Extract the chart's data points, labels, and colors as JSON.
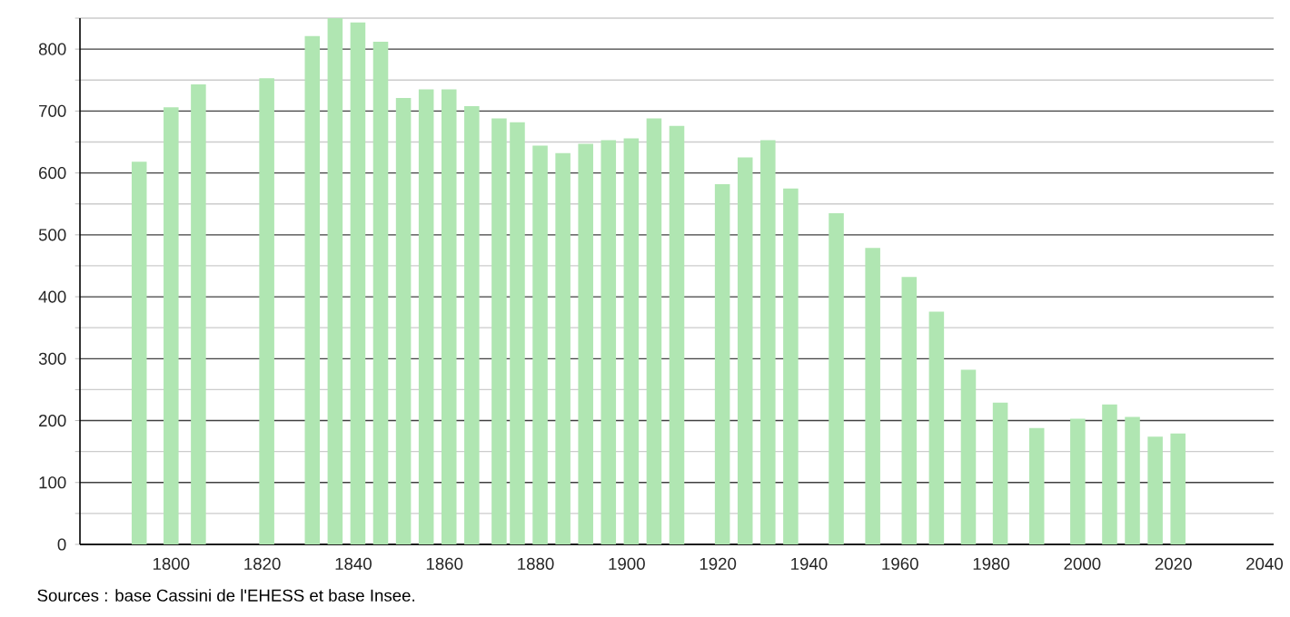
{
  "chart_data": {
    "type": "bar",
    "x": [
      1793,
      1800,
      1806,
      1821,
      1831,
      1836,
      1841,
      1846,
      1851,
      1856,
      1861,
      1866,
      1872,
      1876,
      1881,
      1886,
      1891,
      1896,
      1901,
      1906,
      1911,
      1921,
      1926,
      1931,
      1936,
      1946,
      1954,
      1962,
      1968,
      1975,
      1982,
      1990,
      1999,
      2006,
      2011,
      2016,
      2021
    ],
    "values": [
      618,
      706,
      743,
      753,
      821,
      850,
      843,
      812,
      721,
      735,
      735,
      708,
      688,
      682,
      644,
      632,
      647,
      653,
      656,
      688,
      676,
      582,
      625,
      653,
      575,
      535,
      479,
      432,
      376,
      282,
      229,
      188,
      203,
      226,
      206,
      174,
      179
    ],
    "color": "#b0e6b2",
    "xlim": [
      1780,
      2042
    ],
    "xticks": [
      1800,
      1820,
      1840,
      1860,
      1880,
      1900,
      1920,
      1940,
      1960,
      1980,
      2000,
      2020,
      2040
    ],
    "ylim": [
      0,
      850
    ],
    "yticks": [
      0,
      {
        "value": 50,
        "label": null
      },
      100,
      {
        "value": 150,
        "label": null
      },
      200,
      {
        "value": 250,
        "label": null
      },
      300,
      {
        "value": 350,
        "label": null
      },
      400,
      {
        "value": 450,
        "label": null
      },
      500,
      {
        "value": 550,
        "label": null
      },
      600,
      {
        "value": 650,
        "label": null
      },
      700,
      {
        "value": 750,
        "label": null
      },
      800,
      {
        "value": 850,
        "label": null
      }
    ],
    "grid": "y",
    "annotations": [
      "Sources : base Cassini de l'EHESS et base Insee."
    ]
  }
}
